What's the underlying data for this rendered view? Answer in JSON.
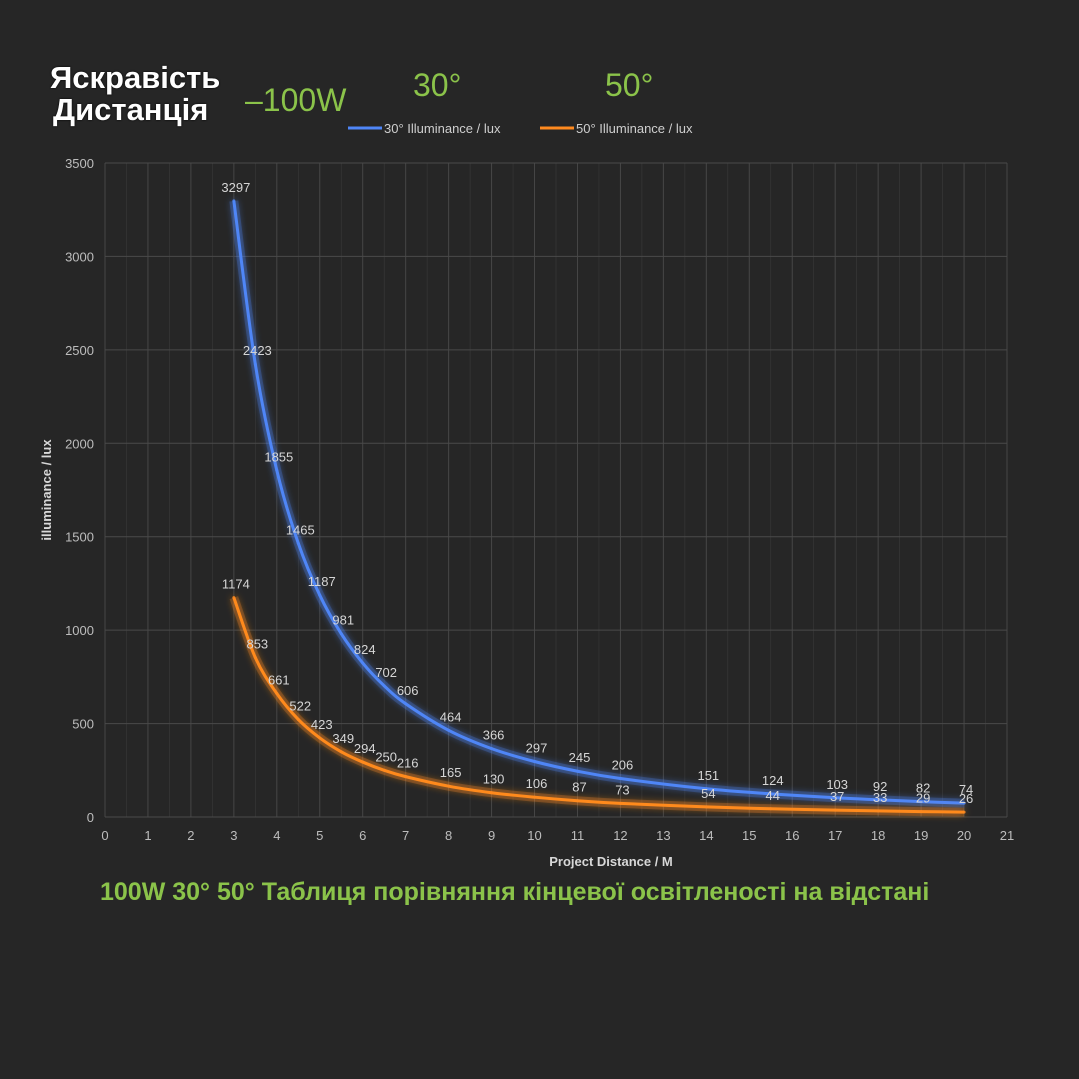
{
  "header": {
    "line1": "Яскравість",
    "line2": "Дистанція",
    "power": "–100W",
    "angle1": "30°",
    "angle2": "50°"
  },
  "caption": "100W 30° 50° Таблиця порівняння кінцевої освітленості на відстані",
  "colors": {
    "background": "#262626",
    "grid": "#4a4a4a",
    "series_30": "#4f86f7",
    "series_50": "#ff8a1f",
    "accent_green": "#8bc34a"
  },
  "chart_data": {
    "type": "line",
    "xlabel": "Project Distance / M",
    "ylabel": "illuminance / lux",
    "xlim": [
      0,
      21
    ],
    "ylim": [
      0,
      3500
    ],
    "xticks": [
      0,
      1,
      2,
      3,
      4,
      5,
      6,
      7,
      8,
      9,
      10,
      11,
      12,
      13,
      14,
      15,
      16,
      17,
      18,
      19,
      20,
      21
    ],
    "yticks": [
      0,
      500,
      1000,
      1500,
      2000,
      2500,
      3000,
      3500
    ],
    "grid": true,
    "legend_position": "top",
    "series": [
      {
        "name": "30° Illuminance / lux",
        "color": "#4f86f7",
        "points": [
          [
            3,
            3297
          ],
          [
            3.5,
            2423
          ],
          [
            4,
            1855
          ],
          [
            4.5,
            1465
          ],
          [
            5,
            1187
          ],
          [
            5.5,
            981
          ],
          [
            6,
            824
          ],
          [
            6.5,
            702
          ],
          [
            7,
            606
          ],
          [
            8,
            464
          ],
          [
            9,
            366
          ],
          [
            10,
            297
          ],
          [
            11,
            245
          ],
          [
            12,
            206
          ],
          [
            14,
            151
          ],
          [
            15.5,
            124
          ],
          [
            17,
            103
          ],
          [
            18,
            92
          ],
          [
            19,
            82
          ],
          [
            20,
            74
          ]
        ]
      },
      {
        "name": "50° Illuminance / lux",
        "color": "#ff8a1f",
        "points": [
          [
            3,
            1174
          ],
          [
            3.5,
            853
          ],
          [
            4,
            661
          ],
          [
            4.5,
            522
          ],
          [
            5,
            423
          ],
          [
            5.5,
            349
          ],
          [
            6,
            294
          ],
          [
            6.5,
            250
          ],
          [
            7,
            216
          ],
          [
            8,
            165
          ],
          [
            9,
            130
          ],
          [
            10,
            106
          ],
          [
            11,
            87
          ],
          [
            12,
            73
          ],
          [
            14,
            54
          ],
          [
            15.5,
            44
          ],
          [
            17,
            37
          ],
          [
            18,
            33
          ],
          [
            19,
            29
          ],
          [
            20,
            26
          ]
        ]
      }
    ]
  }
}
